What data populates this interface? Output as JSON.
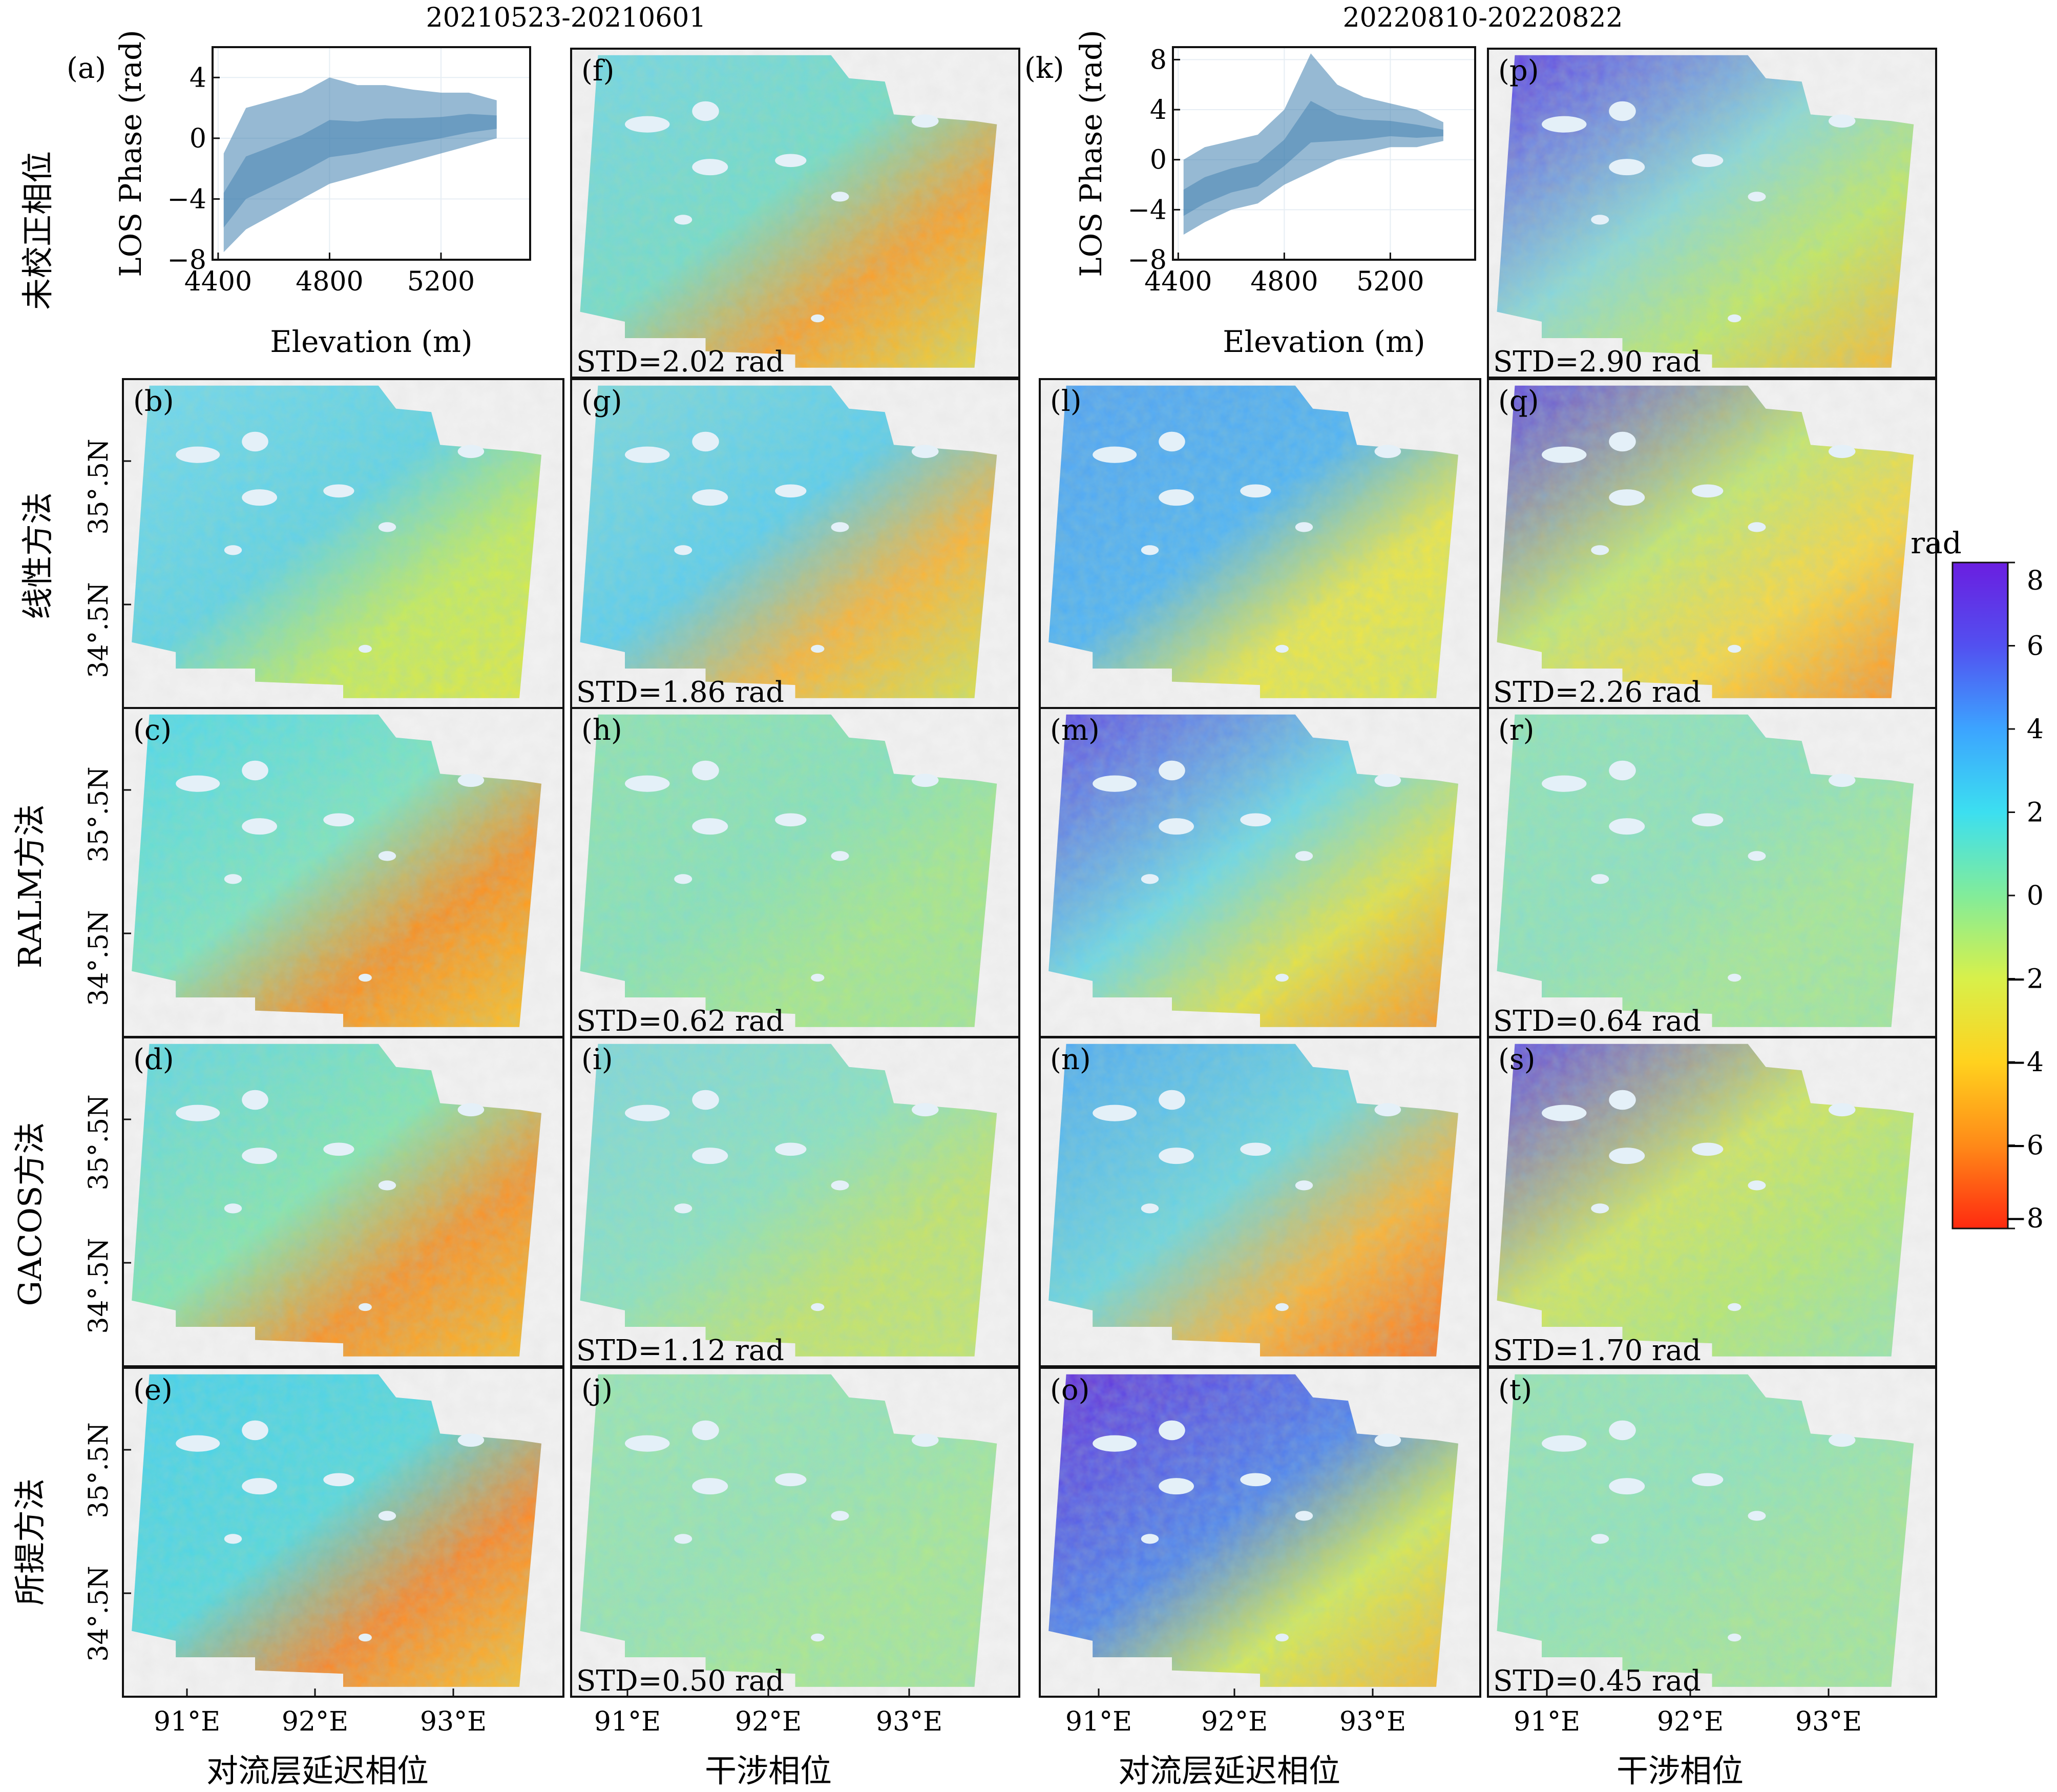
{
  "columns": {
    "date_titles": [
      "20210523-20210601",
      "20220810-20220822"
    ],
    "bottom_labels": [
      "对流层延迟相位",
      "干涉相位",
      "对流层延迟相位",
      "干涉相位"
    ]
  },
  "rows": {
    "labels": [
      "未校正相位",
      "线性方法",
      "RALM方法",
      "GACOS方法",
      "所提方法"
    ]
  },
  "axes": {
    "lon_ticks": [
      "91°E",
      "92°E",
      "93°E"
    ],
    "lat_ticks": [
      "35°.5N",
      "34°.5N"
    ]
  },
  "panels": {
    "letters_col1": [
      "(b)",
      "(c)",
      "(d)",
      "(e)"
    ],
    "letters_col2": [
      "(f)",
      "(g)",
      "(h)",
      "(i)",
      "(j)"
    ],
    "letters_col3": [
      "(l)",
      "(m)",
      "(n)",
      "(o)"
    ],
    "letters_col4": [
      "(p)",
      "(q)",
      "(r)",
      "(s)",
      "(t)"
    ],
    "std_col2": [
      "STD=2.02 rad",
      "STD=1.86 rad",
      "STD=0.62 rad",
      "STD=1.12 rad",
      "STD=0.50 rad"
    ],
    "std_col4": [
      "STD=2.90 rad",
      "STD=2.26 rad",
      "STD=0.64 rad",
      "STD=1.70 rad",
      "STD=0.45 rad"
    ]
  },
  "colorbar": {
    "label": "rad",
    "ticks": [
      "8",
      "6",
      "4",
      "2",
      "0",
      "−2",
      "−4",
      "−6",
      "−8"
    ],
    "range": [
      -8,
      8
    ],
    "colors": [
      "#ff2a10",
      "#ff8a18",
      "#ffd21e",
      "#d8f04a",
      "#82ec9a",
      "#3cdff0",
      "#3ca4ff",
      "#5250f0",
      "#6a1ee0"
    ]
  },
  "chart_data": [
    {
      "type": "scatter",
      "panel": "(a)",
      "xlabel": "Elevation (m)",
      "ylabel": "LOS Phase (rad)",
      "x_ticks": [
        "4400",
        "4800",
        "5200"
      ],
      "y_ticks": [
        "4",
        "0",
        "−4",
        "−8"
      ],
      "xlim": [
        4380,
        5520
      ],
      "ylim": [
        -8,
        6
      ],
      "color": "#3f7faf",
      "envelope": {
        "x": [
          4420,
          4500,
          4600,
          4700,
          4800,
          4900,
          5000,
          5100,
          5200,
          5300,
          5400
        ],
        "upper": [
          -1,
          2,
          2.5,
          3,
          4,
          3.5,
          3.5,
          3.2,
          3,
          3,
          2.5
        ],
        "lower": [
          -7.5,
          -6,
          -5,
          -4,
          -3,
          -2.5,
          -2,
          -1.5,
          -1,
          -0.5,
          0
        ]
      }
    },
    {
      "type": "scatter",
      "panel": "(k)",
      "xlabel": "Elevation (m)",
      "ylabel": "LOS Phase (rad)",
      "x_ticks": [
        "4400",
        "4800",
        "5200"
      ],
      "y_ticks": [
        "8",
        "4",
        "0",
        "−4",
        "−8"
      ],
      "xlim": [
        4380,
        5520
      ],
      "ylim": [
        -8,
        9
      ],
      "color": "#3f7faf",
      "envelope": {
        "x": [
          4420,
          4500,
          4600,
          4700,
          4800,
          4900,
          5000,
          5100,
          5200,
          5300,
          5400
        ],
        "upper": [
          0,
          1,
          1.5,
          2,
          4,
          8.5,
          6,
          5,
          4.5,
          4,
          3
        ],
        "lower": [
          -6,
          -5,
          -4,
          -3.5,
          -2,
          -1,
          0,
          0.5,
          1,
          1,
          1.5
        ]
      }
    }
  ]
}
